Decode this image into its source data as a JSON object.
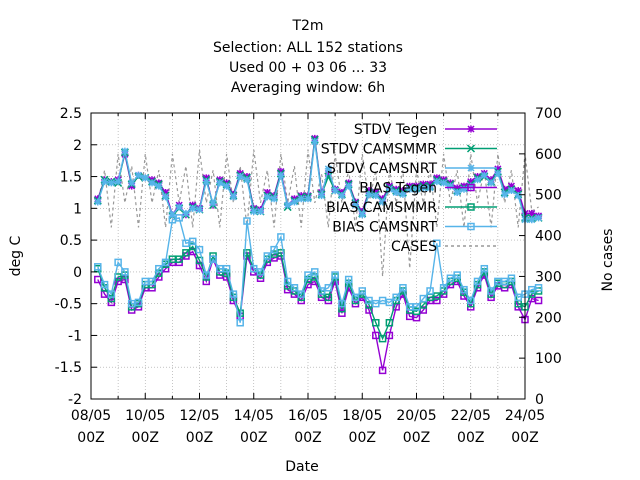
{
  "chart_data": {
    "type": "line",
    "title_lines": [
      "T2m",
      "Selection: ALL    152 stations",
      "Used  00 + 03 06 ... 33",
      "Averaging window:  6h"
    ],
    "xlabel": "Date",
    "ylabel": "deg C",
    "y2label": "No cases",
    "ylim": [
      -2,
      2.5
    ],
    "y2lim": [
      0,
      700
    ],
    "y_ticks": [
      "-2",
      "-1.5",
      "-1",
      "-0.5",
      "0",
      "0.5",
      "1",
      "1.5",
      "2",
      "2.5"
    ],
    "y2_ticks": [
      "0",
      "100",
      "200",
      "300",
      "400",
      "500",
      "600",
      "700"
    ],
    "x_ticks": [
      {
        "top": "08/05",
        "bottom": "00Z"
      },
      {
        "top": "10/05",
        "bottom": "00Z"
      },
      {
        "top": "12/05",
        "bottom": "00Z"
      },
      {
        "top": "14/05",
        "bottom": "00Z"
      },
      {
        "top": "16/05",
        "bottom": "00Z"
      },
      {
        "top": "18/05",
        "bottom": "00Z"
      },
      {
        "top": "20/05",
        "bottom": "00Z"
      },
      {
        "top": "22/05",
        "bottom": "00Z"
      },
      {
        "top": "24/05",
        "bottom": "00Z"
      }
    ],
    "x_range_days": [
      0,
      16
    ],
    "x_step_hours": 6,
    "x_start_hour": 6,
    "grid": true,
    "legend_position": "top-right",
    "series": [
      {
        "name": "STDV Tegen",
        "color": "#9400d3",
        "marker": "star",
        "axis": "y1",
        "values": [
          1.15,
          1.45,
          1.42,
          1.45,
          1.85,
          1.35,
          1.52,
          1.48,
          1.45,
          1.4,
          1.25,
          0.9,
          1.05,
          0.9,
          1.05,
          1.0,
          1.48,
          1.05,
          1.45,
          1.4,
          1.22,
          1.55,
          1.5,
          1.0,
          0.98,
          1.25,
          1.2,
          1.58,
          1.05,
          1.15,
          1.2,
          1.2,
          2.1,
          1.25,
          1.55,
          1.3,
          1.25,
          1.4,
          1.1,
          0.95,
          1.28,
          1.25,
          1.15,
          1.35,
          1.3,
          1.28,
          1.35,
          1.35,
          1.38,
          1.38,
          1.48,
          1.45,
          1.4,
          1.32,
          1.35,
          1.42,
          1.5,
          1.55,
          1.45,
          1.62,
          1.3,
          1.35,
          1.28,
          0.92,
          0.92,
          0.88
        ]
      },
      {
        "name": "STDV CAMSMMR",
        "color": "#009e73",
        "marker": "cross",
        "axis": "y1",
        "values": [
          1.12,
          1.45,
          1.42,
          1.4,
          1.88,
          1.38,
          1.5,
          1.48,
          1.42,
          1.38,
          1.2,
          0.88,
          1.0,
          0.9,
          1.02,
          0.98,
          1.45,
          1.05,
          1.42,
          1.38,
          1.2,
          1.52,
          1.48,
          0.98,
          0.95,
          1.2,
          1.18,
          1.55,
          1.02,
          1.12,
          1.18,
          1.18,
          2.08,
          1.22,
          1.5,
          1.28,
          1.22,
          1.38,
          1.08,
          0.92,
          1.25,
          1.22,
          1.12,
          1.32,
          1.28,
          1.25,
          1.32,
          1.32,
          1.35,
          1.35,
          1.45,
          1.42,
          1.38,
          1.28,
          1.32,
          1.38,
          1.48,
          1.5,
          1.42,
          1.58,
          1.25,
          1.3,
          1.22,
          0.85,
          0.85,
          0.85
        ]
      },
      {
        "name": "STDV CAMSNRT",
        "color": "#56b4e9",
        "marker": "star",
        "axis": "y1",
        "values": [
          1.1,
          1.42,
          1.4,
          1.42,
          1.9,
          1.4,
          1.52,
          1.48,
          1.4,
          1.35,
          1.18,
          0.9,
          1.02,
          0.92,
          1.0,
          0.98,
          1.42,
          1.08,
          1.4,
          1.35,
          1.18,
          1.5,
          1.45,
          0.95,
          0.95,
          1.18,
          1.15,
          1.52,
          1.05,
          1.1,
          1.15,
          1.15,
          2.05,
          1.2,
          1.62,
          1.28,
          1.2,
          1.35,
          1.05,
          0.9,
          1.22,
          1.2,
          1.1,
          1.3,
          1.25,
          1.22,
          1.3,
          1.3,
          1.32,
          1.32,
          1.42,
          1.4,
          1.35,
          1.25,
          1.3,
          1.35,
          1.45,
          1.52,
          1.4,
          1.55,
          1.22,
          1.28,
          1.2,
          0.82,
          0.82,
          0.85
        ]
      },
      {
        "name": "BIAS Tegen",
        "color": "#9400d3",
        "marker": "square",
        "axis": "y1",
        "values": [
          -0.12,
          -0.35,
          -0.48,
          -0.15,
          -0.12,
          -0.6,
          -0.55,
          -0.25,
          -0.25,
          -0.08,
          0.05,
          0.15,
          0.15,
          0.25,
          0.32,
          0.1,
          -0.15,
          0.2,
          -0.05,
          -0.08,
          -0.45,
          -0.7,
          0.25,
          0.0,
          -0.1,
          0.15,
          0.22,
          0.25,
          -0.28,
          -0.35,
          -0.45,
          -0.2,
          -0.15,
          -0.4,
          -0.45,
          -0.15,
          -0.65,
          -0.25,
          -0.5,
          -0.4,
          -0.6,
          -1.0,
          -1.55,
          -1.0,
          -0.55,
          -0.35,
          -0.7,
          -0.72,
          -0.6,
          -0.45,
          -0.45,
          -0.35,
          -0.2,
          -0.15,
          -0.38,
          -0.55,
          -0.25,
          -0.05,
          -0.4,
          -0.22,
          -0.25,
          -0.2,
          -0.55,
          -0.75,
          -0.42,
          -0.45
        ]
      },
      {
        "name": "BIAS CAMSMMR",
        "color": "#009e73",
        "marker": "square",
        "axis": "y1",
        "values": [
          0.05,
          -0.25,
          -0.42,
          -0.08,
          -0.05,
          -0.55,
          -0.5,
          -0.2,
          -0.2,
          -0.02,
          0.12,
          0.2,
          0.2,
          0.3,
          0.4,
          0.18,
          -0.08,
          0.25,
          0.0,
          -0.02,
          -0.4,
          -0.65,
          0.3,
          0.05,
          -0.05,
          0.2,
          0.28,
          0.3,
          -0.22,
          -0.3,
          -0.4,
          -0.12,
          -0.08,
          -0.35,
          -0.4,
          -0.08,
          -0.58,
          -0.18,
          -0.45,
          -0.35,
          -0.52,
          -0.8,
          -1.05,
          -0.8,
          -0.45,
          -0.3,
          -0.6,
          -0.62,
          -0.52,
          -0.4,
          -0.38,
          -0.3,
          -0.15,
          -0.1,
          -0.32,
          -0.5,
          -0.2,
          0.0,
          -0.35,
          -0.18,
          -0.2,
          -0.15,
          -0.5,
          -0.55,
          -0.35,
          -0.3
        ]
      },
      {
        "name": "BIAS CAMSNRT",
        "color": "#56b4e9",
        "marker": "square",
        "axis": "y1",
        "values": [
          0.08,
          -0.2,
          -0.35,
          0.15,
          0.0,
          -0.5,
          -0.48,
          -0.15,
          -0.15,
          0.05,
          0.15,
          0.82,
          0.85,
          0.45,
          0.48,
          0.35,
          -0.05,
          0.2,
          0.05,
          0.05,
          -0.35,
          -0.8,
          0.8,
          0.05,
          0.0,
          0.25,
          0.35,
          0.55,
          -0.15,
          -0.25,
          -0.35,
          -0.05,
          0.0,
          -0.3,
          -0.25,
          -0.05,
          -0.5,
          -0.12,
          -0.4,
          -0.3,
          -0.45,
          -0.5,
          -0.45,
          -0.48,
          -0.4,
          -0.25,
          -0.55,
          -0.55,
          -0.42,
          -0.3,
          0.45,
          -0.25,
          -0.1,
          -0.05,
          -0.28,
          -0.45,
          -0.15,
          0.05,
          -0.3,
          -0.15,
          -0.15,
          -0.1,
          -0.4,
          -0.35,
          -0.28,
          -0.25
        ]
      },
      {
        "name": "CASES",
        "color": "#999999",
        "marker": "none",
        "dash": true,
        "axis": "y2",
        "values": [
          480,
          560,
          420,
          600,
          480,
          570,
          420,
          600,
          480,
          560,
          420,
          600,
          480,
          570,
          420,
          610,
          480,
          560,
          420,
          600,
          480,
          570,
          420,
          610,
          480,
          560,
          420,
          600,
          480,
          570,
          420,
          610,
          480,
          550,
          420,
          600,
          480,
          560,
          420,
          600,
          480,
          560,
          300,
          560,
          480,
          560,
          320,
          560,
          480,
          560,
          420,
          600,
          480,
          560,
          420,
          600,
          480,
          560,
          420,
          600,
          480,
          560,
          420,
          600,
          460,
          470
        ]
      }
    ]
  }
}
